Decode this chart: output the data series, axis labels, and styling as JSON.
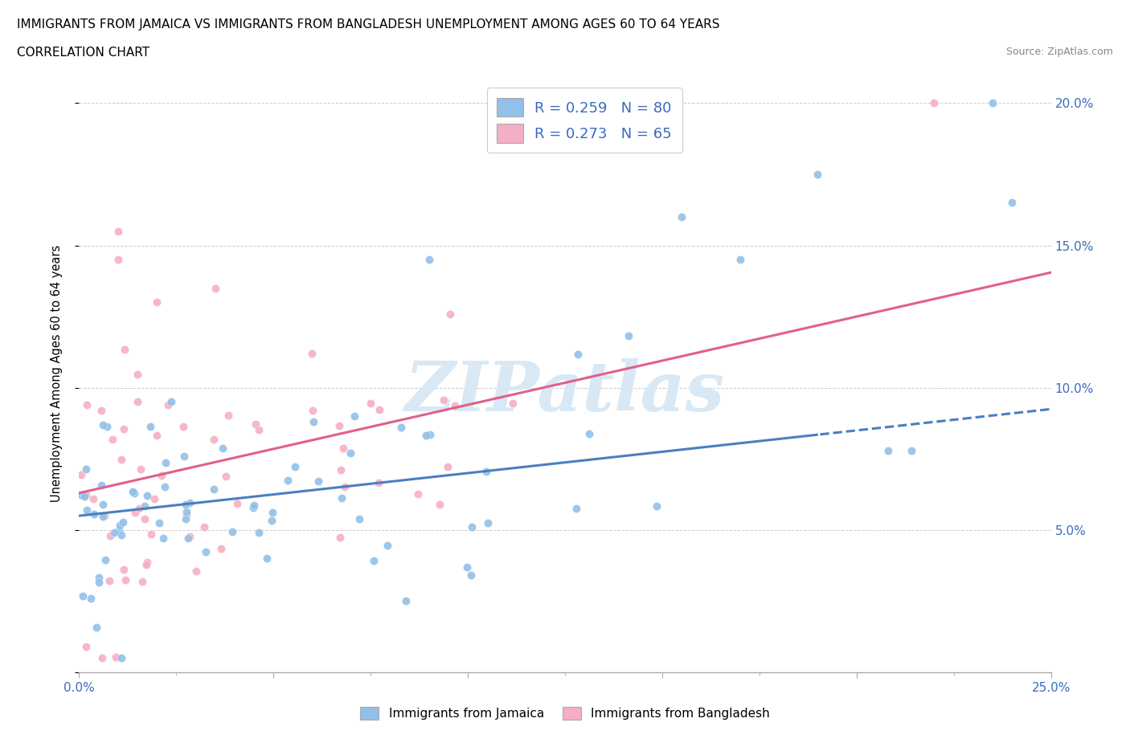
{
  "title_line1": "IMMIGRANTS FROM JAMAICA VS IMMIGRANTS FROM BANGLADESH UNEMPLOYMENT AMONG AGES 60 TO 64 YEARS",
  "title_line2": "CORRELATION CHART",
  "source": "Source: ZipAtlas.com",
  "ylabel": "Unemployment Among Ages 60 to 64 years",
  "xlim": [
    0.0,
    0.25
  ],
  "ylim": [
    0.0,
    0.21
  ],
  "jamaica_color": "#92c0e8",
  "bangladesh_color": "#f5afc4",
  "jamaica_line_color": "#4a7fc1",
  "bangladesh_line_color": "#e0608a",
  "jamaica_line_dash_start": 0.19,
  "watermark_text": "ZIPatlas",
  "watermark_color": "#d8e8f5",
  "legend_text": [
    "R = 0.259   N = 80",
    "R = 0.273   N = 65"
  ],
  "legend_label_color": "#3a6bbf",
  "bottom_legend_jamaica": "Immigrants from Jamaica",
  "bottom_legend_bangladesh": "Immigrants from Bangladesh"
}
